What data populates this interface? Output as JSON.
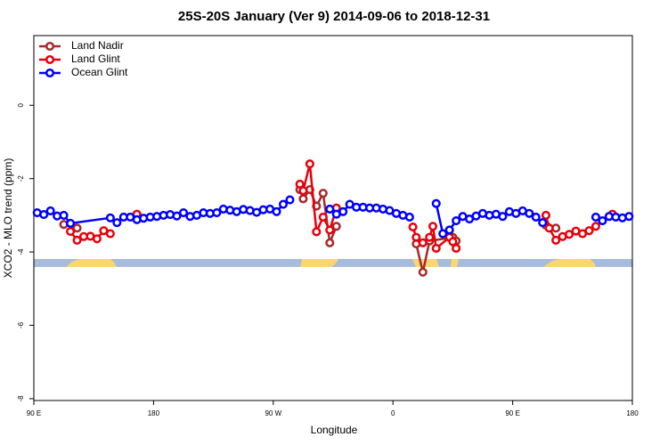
{
  "chart_data": {
    "type": "line",
    "title": "25S-20S January (Ver 9)   2014-09-06 to 2018-12-31",
    "x_label": "Longitude",
    "y_label": "XCO2 - MLO trend (ppm)",
    "xlim": [
      90,
      540
    ],
    "ylim": [
      -8.05,
      1.9
    ],
    "xticks": [
      {
        "value": 90,
        "label": "90 E"
      },
      180,
      {
        "value": 270,
        "label": "90 W"
      },
      {
        "value": 360,
        "label": "0"
      },
      {
        "value": 450,
        "label": "90 E"
      },
      {
        "value": 540,
        "label": "180"
      }
    ],
    "yticks": [
      0,
      -2,
      -4,
      -6,
      -8
    ],
    "legend": "top-left",
    "series": [
      {
        "name": "Land Nadir",
        "color": "#a52a2a",
        "x": [
          112.5,
          122.5,
          200,
          290,
          292.5,
          297.5,
          302.5,
          307.5,
          312.5,
          317.5,
          350,
          377.5,
          382.5,
          387.5,
          405,
          407.5,
          450,
          475,
          482.5
        ],
        "values": [
          -3.25,
          -3.35,
          null,
          -2.3,
          -2.55,
          -2.3,
          -2.75,
          -2.4,
          -3.75,
          -3.3,
          null,
          -3.78,
          -4.55,
          -3.7,
          -3.6,
          -3.7,
          null,
          -3.27,
          -3.35
        ]
      },
      {
        "name": "Land Glint",
        "color": "#e8000b",
        "x": [
          117.5,
          122.5,
          127.5,
          132.5,
          137.5,
          142.5,
          147.5,
          157.5,
          167.5,
          200,
          290,
          292.5,
          297.5,
          302.5,
          307.5,
          312.5,
          317.5,
          350,
          375,
          377.5,
          382.5,
          387.5,
          390,
          392.5,
          402.5,
          405,
          407.5,
          450,
          475,
          477.5,
          482.5,
          487.5,
          492.5,
          497.5,
          502.5,
          507.5,
          512.5,
          518,
          525
        ],
        "values": [
          -3.44,
          -3.68,
          -3.58,
          -3.57,
          -3.64,
          -3.42,
          -3.5,
          null,
          -2.97,
          null,
          -2.15,
          -2.33,
          -1.6,
          -3.45,
          -3.05,
          -3.4,
          -2.8,
          null,
          -3.32,
          -3.6,
          -3.75,
          -3.6,
          -3.3,
          -3.9,
          -3.6,
          -3.72,
          -3.9,
          null,
          -3.0,
          -3.35,
          -3.68,
          -3.58,
          -3.52,
          -3.43,
          -3.5,
          -3.42,
          -3.3,
          null,
          -2.97
        ]
      },
      {
        "name": "Ocean Glint",
        "color": "#0000ff",
        "x": [
          92.5,
          97.5,
          102.5,
          107.5,
          112.5,
          117.5,
          147.5,
          152.5,
          157.5,
          162.5,
          167.5,
          172.5,
          177.5,
          182.5,
          187.5,
          192.5,
          197.5,
          202.5,
          207.5,
          212.5,
          217.5,
          222.5,
          227.5,
          232.5,
          237.5,
          242.5,
          247.5,
          252.5,
          257.5,
          262.5,
          267.5,
          272.5,
          277.5,
          282.5,
          297.5,
          312.5,
          317.5,
          322.5,
          327.5,
          332.5,
          337.5,
          342.5,
          347.5,
          352.5,
          357.5,
          362.5,
          367.5,
          372.5,
          382.5,
          392.5,
          397.5,
          402.5,
          407.5,
          412.5,
          417.5,
          422.5,
          427.5,
          432.5,
          437.5,
          442.5,
          447.5,
          452.5,
          457.5,
          462.5,
          467.5,
          472.5,
          492.5,
          512.5,
          517.5,
          522.5,
          527.5,
          532.5,
          537.5
        ],
        "values": [
          -2.93,
          -2.98,
          -2.88,
          -3.02,
          -3.0,
          -3.22,
          -3.07,
          -3.2,
          -3.05,
          -3.05,
          -3.12,
          -3.08,
          -3.05,
          -3.03,
          -3.0,
          -2.98,
          -3.02,
          -2.93,
          -3.03,
          -3.0,
          -2.93,
          -2.95,
          -2.93,
          -2.83,
          -2.86,
          -2.9,
          -2.84,
          -2.87,
          -2.92,
          -2.85,
          -2.83,
          -2.9,
          -2.7,
          -2.58,
          null,
          -2.83,
          -2.97,
          -2.9,
          -2.7,
          -2.78,
          -2.78,
          -2.8,
          -2.8,
          -2.83,
          -2.87,
          -2.95,
          -3.0,
          -3.05,
          null,
          -2.68,
          -3.5,
          -3.4,
          -3.15,
          -3.03,
          -3.1,
          -3.02,
          -2.95,
          -3.0,
          -2.97,
          -3.03,
          -2.9,
          -2.95,
          -2.88,
          -2.95,
          -3.05,
          -3.2,
          null,
          -3.05,
          -3.15,
          -3.03,
          -3.05,
          -3.07,
          -3.03
        ]
      }
    ]
  }
}
